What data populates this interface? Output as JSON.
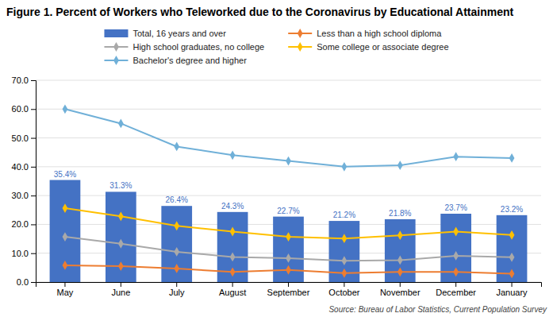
{
  "chart_data": {
    "type": "bar",
    "title": "Figure 1. Percent of Workers who Teleworked due to the Coronavirus by Educational Attainment",
    "source": "Source: Bureau of Labor Statistics, Current Population Survey",
    "categories": [
      "May",
      "June",
      "July",
      "August",
      "September",
      "October",
      "November",
      "December",
      "January"
    ],
    "series": [
      {
        "name": "Total, 16 years and over",
        "type": "bar",
        "color": "#4472C4",
        "values": [
          35.4,
          31.3,
          26.4,
          24.3,
          22.7,
          21.2,
          21.8,
          23.7,
          23.2
        ],
        "value_labels": [
          "35.4%",
          "31.3%",
          "26.4%",
          "24.3%",
          "22.7%",
          "21.2%",
          "21.8%",
          "23.7%",
          "23.2%"
        ]
      },
      {
        "name": "Less than a high school diploma",
        "type": "line",
        "color": "#ED7D31",
        "marker": "diamond",
        "values": [
          5.8,
          5.5,
          4.7,
          3.5,
          4.2,
          3.1,
          3.5,
          3.5,
          2.9
        ]
      },
      {
        "name": "High school graduates, no college",
        "type": "line",
        "color": "#A9A9A9",
        "marker": "diamond",
        "values": [
          15.7,
          13.3,
          10.5,
          8.7,
          8.3,
          7.4,
          7.6,
          9.1,
          8.6
        ]
      },
      {
        "name": "Some college or associate degree",
        "type": "line",
        "color": "#FFC000",
        "marker": "diamond",
        "values": [
          25.6,
          22.8,
          19.5,
          17.5,
          15.7,
          15.1,
          16.2,
          17.5,
          16.3
        ]
      },
      {
        "name": "Bachelor's degree and higher",
        "type": "line",
        "color": "#70B0D8",
        "marker": "diamond",
        "values": [
          60.0,
          55.0,
          47.0,
          44.0,
          42.0,
          40.0,
          40.5,
          43.5,
          43.0
        ]
      }
    ],
    "ylim": [
      0,
      70
    ],
    "yticks": [
      {
        "value": 0,
        "label": "0.0"
      },
      {
        "value": 10,
        "label": "10.0"
      },
      {
        "value": 20,
        "label": "20.0"
      },
      {
        "value": 30,
        "label": "30.0"
      },
      {
        "value": 40,
        "label": "40.0"
      },
      {
        "value": 50,
        "label": "50.0"
      },
      {
        "value": 60,
        "label": "60.0"
      },
      {
        "value": 70,
        "label": "70.0"
      }
    ],
    "grid": true,
    "legend": "top",
    "data_labels": true
  }
}
